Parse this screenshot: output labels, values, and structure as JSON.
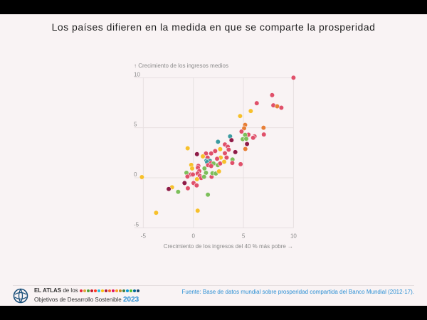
{
  "title": "Los países difieren en la medida en que se comparte la prosperidad",
  "colors": {
    "red": "#e0506a",
    "yellow": "#f7c02a",
    "orange": "#e77f37",
    "green": "#7dbf5b",
    "teal": "#3c9ca1",
    "maroon": "#8e1b47",
    "background": "#f9f3f4"
  },
  "chart_data": {
    "type": "scatter",
    "xlabel": "Crecimiento de los ingresos del 40 % más pobre →",
    "ylabel": "↑ Crecimiento de los ingresos medios",
    "xlim": [
      -5.2,
      10
    ],
    "ylim": [
      -5,
      10
    ],
    "xticks": [
      "-5",
      "0",
      "5",
      "10"
    ],
    "yticks": [
      "-5",
      "0",
      "5",
      "10"
    ],
    "grid": true,
    "points": [
      {
        "x": 10,
        "y": 10,
        "c": "red"
      },
      {
        "x": 7.87,
        "y": 8.26,
        "c": "red"
      },
      {
        "x": 7.99,
        "y": 7.24,
        "c": "red"
      },
      {
        "x": 8.37,
        "y": 7.14,
        "c": "orange"
      },
      {
        "x": 8.79,
        "y": 7.0,
        "c": "red"
      },
      {
        "x": 6.33,
        "y": 7.45,
        "c": "red"
      },
      {
        "x": 5.73,
        "y": 6.67,
        "c": "yellow"
      },
      {
        "x": 4.67,
        "y": 6.17,
        "c": "yellow"
      },
      {
        "x": 5.17,
        "y": 5.29,
        "c": "orange"
      },
      {
        "x": 5.07,
        "y": 4.95,
        "c": "orange"
      },
      {
        "x": 4.81,
        "y": 4.62,
        "c": "red"
      },
      {
        "x": 5.5,
        "y": 4.31,
        "c": "red"
      },
      {
        "x": 5.17,
        "y": 4.29,
        "c": "green"
      },
      {
        "x": 7.01,
        "y": 5.0,
        "c": "orange"
      },
      {
        "x": 7.04,
        "y": 4.33,
        "c": "red"
      },
      {
        "x": 6.11,
        "y": 4.14,
        "c": "red"
      },
      {
        "x": 5.97,
        "y": 4.0,
        "c": "red"
      },
      {
        "x": 4.93,
        "y": 3.86,
        "c": "green"
      },
      {
        "x": 5.28,
        "y": 3.9,
        "c": "green"
      },
      {
        "x": 5.36,
        "y": 3.38,
        "c": "maroon"
      },
      {
        "x": 5.19,
        "y": 2.88,
        "c": "orange"
      },
      {
        "x": 4.72,
        "y": 1.36,
        "c": "red"
      },
      {
        "x": 3.67,
        "y": 4.14,
        "c": "teal"
      },
      {
        "x": 3.81,
        "y": 3.76,
        "c": "maroon"
      },
      {
        "x": 2.46,
        "y": 3.6,
        "c": "teal"
      },
      {
        "x": 3.15,
        "y": 3.33,
        "c": "red"
      },
      {
        "x": 3.44,
        "y": 3.1,
        "c": "red"
      },
      {
        "x": 3.53,
        "y": 2.81,
        "c": "red"
      },
      {
        "x": 4.19,
        "y": 2.57,
        "c": "maroon"
      },
      {
        "x": 2.68,
        "y": 2.86,
        "c": "yellow"
      },
      {
        "x": 2.18,
        "y": 2.67,
        "c": "red"
      },
      {
        "x": 1.78,
        "y": 2.43,
        "c": "red"
      },
      {
        "x": 1.26,
        "y": 2.43,
        "c": "red"
      },
      {
        "x": 3.15,
        "y": 2.45,
        "c": "red"
      },
      {
        "x": 0.36,
        "y": 2.36,
        "c": "maroon"
      },
      {
        "x": -0.57,
        "y": 2.95,
        "c": "yellow"
      },
      {
        "x": 1.42,
        "y": 2.02,
        "c": "red"
      },
      {
        "x": 0.95,
        "y": 2.14,
        "c": "yellow"
      },
      {
        "x": 2.73,
        "y": 2.02,
        "c": "yellow"
      },
      {
        "x": 3.32,
        "y": 2.02,
        "c": "red"
      },
      {
        "x": 2.37,
        "y": 1.9,
        "c": "red"
      },
      {
        "x": 1.3,
        "y": 1.71,
        "c": "teal"
      },
      {
        "x": 1.66,
        "y": 1.69,
        "c": "teal"
      },
      {
        "x": 1.37,
        "y": 1.57,
        "c": "teal"
      },
      {
        "x": 1.78,
        "y": 1.48,
        "c": "red"
      },
      {
        "x": 2.01,
        "y": 1.43,
        "c": "green"
      },
      {
        "x": 1.47,
        "y": 1.26,
        "c": "red"
      },
      {
        "x": 1.78,
        "y": 1.17,
        "c": "red"
      },
      {
        "x": 2.44,
        "y": 1.26,
        "c": "green"
      },
      {
        "x": 2.68,
        "y": 1.43,
        "c": "red"
      },
      {
        "x": 3.08,
        "y": 1.6,
        "c": "yellow"
      },
      {
        "x": 3.91,
        "y": 1.83,
        "c": "green"
      },
      {
        "x": 3.89,
        "y": 1.48,
        "c": "red"
      },
      {
        "x": 0.5,
        "y": 1.19,
        "c": "red"
      },
      {
        "x": 0.45,
        "y": 1.0,
        "c": "red"
      },
      {
        "x": -0.21,
        "y": 1.29,
        "c": "yellow"
      },
      {
        "x": -0.12,
        "y": 0.93,
        "c": "yellow"
      },
      {
        "x": 0.59,
        "y": 0.67,
        "c": "red"
      },
      {
        "x": 1.11,
        "y": 0.93,
        "c": "green"
      },
      {
        "x": 0.43,
        "y": 0.43,
        "c": "red"
      },
      {
        "x": 1.26,
        "y": 0.5,
        "c": "green"
      },
      {
        "x": -0.69,
        "y": 0.5,
        "c": "green"
      },
      {
        "x": -0.26,
        "y": 0.33,
        "c": "red"
      },
      {
        "x": -0.05,
        "y": 0.33,
        "c": "red"
      },
      {
        "x": -0.59,
        "y": 0.12,
        "c": "red"
      },
      {
        "x": 0.64,
        "y": 0.19,
        "c": "red"
      },
      {
        "x": 0.78,
        "y": -0.02,
        "c": "red"
      },
      {
        "x": 1.07,
        "y": 0.1,
        "c": "green"
      },
      {
        "x": 1.82,
        "y": 0.1,
        "c": "red"
      },
      {
        "x": 1.91,
        "y": 0.45,
        "c": "green"
      },
      {
        "x": 2.25,
        "y": 0.43,
        "c": "green"
      },
      {
        "x": 2.56,
        "y": 0.64,
        "c": "yellow"
      },
      {
        "x": 0.36,
        "y": -0.14,
        "c": "yellow"
      },
      {
        "x": 0.02,
        "y": -0.52,
        "c": "red"
      },
      {
        "x": 0.33,
        "y": -0.76,
        "c": "red"
      },
      {
        "x": -0.88,
        "y": -0.52,
        "c": "maroon"
      },
      {
        "x": -0.55,
        "y": -1.05,
        "c": "red"
      },
      {
        "x": -2.13,
        "y": -0.95,
        "c": "yellow"
      },
      {
        "x": -2.46,
        "y": -1.12,
        "c": "maroon"
      },
      {
        "x": -1.52,
        "y": -1.4,
        "c": "green"
      },
      {
        "x": -5.14,
        "y": 0.07,
        "c": "yellow"
      },
      {
        "x": 1.45,
        "y": -1.69,
        "c": "green"
      },
      {
        "x": -3.72,
        "y": -3.5,
        "c": "yellow"
      },
      {
        "x": 0.43,
        "y": -3.29,
        "c": "yellow"
      }
    ]
  },
  "footer": {
    "atlas_bold": "EL ATLAS",
    "atlas_rest": "de los",
    "atlas_line2": "Objetivos de Desarrollo Sostenible",
    "year": "2023",
    "source_label": "Fuente:",
    "source_text": "Base de datos mundial sobre prosperidad compartida del Banco Mundial (2012-17).",
    "sdg_colors": [
      "#e5243b",
      "#dda63a",
      "#4c9f38",
      "#c5192d",
      "#ff3a21",
      "#26bde2",
      "#fcc30b",
      "#a21942",
      "#fd6925",
      "#dd1367",
      "#fd9d24",
      "#bf8b2e",
      "#3f7e44",
      "#0a97d9",
      "#56c02b",
      "#00689d",
      "#19486a"
    ]
  }
}
